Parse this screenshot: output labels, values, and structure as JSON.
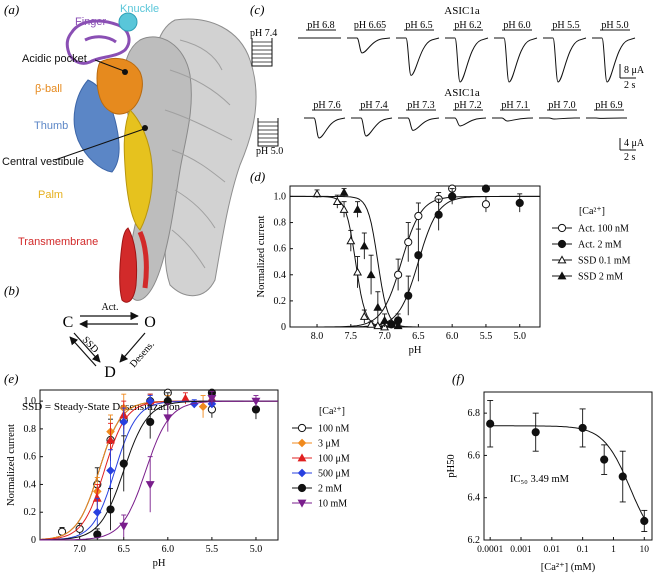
{
  "panels": {
    "a": {
      "label": "(a)",
      "domains": {
        "finger": "Finger",
        "knuckle": "Knuckle",
        "acidic_pocket": "Acidic pocket",
        "beta_ball": "β-ball",
        "thumb": "Thumb",
        "central_vestibule": "Central vestibule",
        "palm": "Palm",
        "transmembrane": "Transmembrane"
      },
      "colors": {
        "finger": "#8a4fb4",
        "knuckle": "#59c6d9",
        "beta_ball": "#e68a1e",
        "thumb": "#5b86c6",
        "palm": "#e6c21e",
        "transmembrane": "#d22a2a",
        "protein": "#c8c8c8"
      }
    },
    "b": {
      "label": "(b)",
      "states": {
        "c": "C",
        "o": "O",
        "d": "D"
      },
      "transitions": {
        "act": "Act.",
        "ssd": "SSD",
        "desens": "Desens."
      },
      "footnote": "SSD = Steady-State Desensitization"
    },
    "c": {
      "label": "(c)",
      "top": {
        "title": "ASIC1a",
        "conditioning": "pH 7.4",
        "tests": [
          "pH 6.8",
          "pH 6.65",
          "pH 6.5",
          "pH 6.2",
          "pH 6.0",
          "pH 5.5",
          "pH 5.0"
        ],
        "relative_amplitude": [
          0.0,
          0.34,
          0.85,
          1.0,
          1.0,
          1.0,
          1.0
        ],
        "scale_y": "8 μA",
        "scale_x": "2 s"
      },
      "bottom": {
        "title": "ASIC1a",
        "conditioning": "pH 5.0",
        "tests": [
          "pH 7.6",
          "pH 7.4",
          "pH 7.3",
          "pH 7.2",
          "pH 7.1",
          "pH 7.0",
          "pH 6.9"
        ],
        "relative_amplitude": [
          1.0,
          0.9,
          0.62,
          0.4,
          0.15,
          0.05,
          0.02
        ],
        "scale_y": "4 μA",
        "scale_x": "2 s"
      }
    },
    "d": {
      "label": "(d)"
    },
    "e": {
      "label": "(e)"
    },
    "f": {
      "label": "(f)"
    }
  },
  "chart_data": [
    {
      "id": "d",
      "type": "scatter",
      "xlabel": "pH",
      "ylabel": "Normalized current",
      "xlim": [
        8.4,
        4.7
      ],
      "ylim": [
        0,
        1.08
      ],
      "xticks": [
        "8.0",
        "7.5",
        "7.0",
        "6.5",
        "6.0",
        "5.5",
        "5.0"
      ],
      "yticks": [
        "0",
        "0.2",
        "0.4",
        "0.6",
        "0.8",
        "1.0"
      ],
      "legend_title": "[Ca²⁺]",
      "legend_position": "right",
      "series": [
        {
          "name": "Act. 100 nM",
          "marker": "circle-open",
          "color": "#111111",
          "pH50": 6.75,
          "hill": 3.0,
          "rising": true,
          "x": [
            7.0,
            6.8,
            6.65,
            6.5,
            6.2,
            6.0,
            5.5
          ],
          "y": [
            0.02,
            0.4,
            0.65,
            0.85,
            0.98,
            1.06,
            0.94
          ],
          "err": [
            0.02,
            0.12,
            0.15,
            0.1,
            0.05,
            0.04,
            0.06
          ]
        },
        {
          "name": "Act. 2 mM",
          "marker": "circle-filled",
          "color": "#111111",
          "pH50": 6.5,
          "hill": 3.0,
          "rising": true,
          "x": [
            6.9,
            6.8,
            6.65,
            6.5,
            6.2,
            6.0,
            5.5,
            5.0
          ],
          "y": [
            0.02,
            0.05,
            0.24,
            0.55,
            0.86,
            1.0,
            1.06,
            0.95
          ],
          "err": [
            0.02,
            0.05,
            0.15,
            0.2,
            0.12,
            0.06,
            0.03,
            0.07
          ]
        },
        {
          "name": "SSD 0.1 mM",
          "marker": "triangle-open",
          "color": "#111111",
          "pH50": 7.43,
          "hill": 6.0,
          "rising": false,
          "x": [
            8.0,
            7.7,
            7.6,
            7.5,
            7.4,
            7.3,
            7.2,
            7.1,
            7.0
          ],
          "y": [
            1.02,
            0.96,
            0.9,
            0.66,
            0.42,
            0.08,
            0.02,
            0.01,
            0.0
          ],
          "err": [
            0.03,
            0.05,
            0.06,
            0.08,
            0.12,
            0.05,
            0.02,
            0.01,
            0.01
          ]
        },
        {
          "name": "SSD 2 mM",
          "marker": "triangle-filled",
          "color": "#111111",
          "pH50": 7.1,
          "hill": 6.0,
          "rising": false,
          "x": [
            7.6,
            7.4,
            7.3,
            7.2,
            7.1,
            7.0,
            6.9,
            6.8
          ],
          "y": [
            1.03,
            0.9,
            0.62,
            0.4,
            0.15,
            0.05,
            0.02,
            0.01
          ],
          "err": [
            0.03,
            0.06,
            0.1,
            0.15,
            0.12,
            0.05,
            0.02,
            0.01
          ]
        }
      ]
    },
    {
      "id": "e",
      "type": "scatter",
      "xlabel": "pH",
      "ylabel": "Normalized current",
      "xlim": [
        7.45,
        4.75
      ],
      "ylim": [
        0,
        1.08
      ],
      "xticks": [
        "7.0",
        "6.5",
        "6.0",
        "5.5",
        "5.0"
      ],
      "yticks": [
        "0",
        "0.2",
        "0.4",
        "0.6",
        "0.8",
        "1.0"
      ],
      "legend_title": "[Ca²⁺]",
      "legend_position": "right",
      "series": [
        {
          "name": "100 nM",
          "marker": "circle-open",
          "color": "#111111",
          "pH50": 6.78,
          "hill": 3.5,
          "x": [
            7.2,
            7.0,
            6.8,
            6.65,
            6.5,
            6.2,
            6.0,
            5.5
          ],
          "y": [
            0.06,
            0.08,
            0.4,
            0.72,
            0.86,
            1.0,
            1.06,
            0.94
          ],
          "err": [
            0.03,
            0.04,
            0.12,
            0.15,
            0.1,
            0.05,
            0.03,
            0.06
          ]
        },
        {
          "name": "3 μM",
          "marker": "diamond-filled",
          "color": "#f08a1e",
          "pH50": 6.78,
          "hill": 3.5,
          "x": [
            6.8,
            6.65,
            6.5,
            6.0,
            5.6
          ],
          "y": [
            0.35,
            0.78,
            0.95,
            1.0,
            0.96
          ],
          "err": [
            0.1,
            0.12,
            0.1,
            0.04,
            0.08
          ]
        },
        {
          "name": "100 μM",
          "marker": "triangle-filled",
          "color": "#e02020",
          "pH50": 6.72,
          "hill": 3.5,
          "x": [
            6.8,
            6.65,
            6.5,
            6.2,
            5.8,
            5.5
          ],
          "y": [
            0.3,
            0.72,
            0.9,
            1.0,
            1.02,
            1.02
          ],
          "err": [
            0.1,
            0.12,
            0.1,
            0.05,
            0.04,
            0.04
          ]
        },
        {
          "name": "500 μM",
          "marker": "diamond-filled",
          "color": "#2840e0",
          "pH50": 6.6,
          "hill": 3.5,
          "x": [
            6.8,
            6.65,
            6.5,
            6.2,
            5.7,
            5.5
          ],
          "y": [
            0.2,
            0.5,
            0.85,
            1.0,
            0.98,
            0.98
          ],
          "err": [
            0.1,
            0.15,
            0.1,
            0.04,
            0.03,
            0.03
          ]
        },
        {
          "name": "2 mM",
          "marker": "circle-filled",
          "color": "#111111",
          "pH50": 6.5,
          "hill": 3.2,
          "x": [
            6.8,
            6.65,
            6.5,
            6.2,
            6.0,
            5.5,
            5.0
          ],
          "y": [
            0.04,
            0.22,
            0.55,
            0.85,
            1.0,
            1.06,
            0.94
          ],
          "err": [
            0.04,
            0.15,
            0.2,
            0.12,
            0.06,
            0.03,
            0.07
          ]
        },
        {
          "name": "10 mM",
          "marker": "triangle-down-filled",
          "color": "#7a1e8c",
          "pH50": 6.25,
          "hill": 3.2,
          "x": [
            6.5,
            6.2,
            6.0,
            5.5,
            5.0
          ],
          "y": [
            0.1,
            0.4,
            0.88,
            1.02,
            1.0
          ],
          "err": [
            0.08,
            0.2,
            0.1,
            0.05,
            0.04
          ]
        }
      ]
    },
    {
      "id": "f",
      "type": "scatter",
      "xlabel": "[Ca²⁺] (mM)",
      "ylabel": "pH50",
      "xscale": "log",
      "xlim": [
        0.0001,
        10
      ],
      "ylim": [
        6.2,
        6.9
      ],
      "xticks": [
        "0.0001",
        "0.001",
        "0.01",
        "0.1",
        "1",
        "10"
      ],
      "yticks": [
        "6.2",
        "6.4",
        "6.6",
        "6.8"
      ],
      "annotation": "IC₅₀ 3.49 mM",
      "fit": {
        "top": 6.74,
        "bottom": 6.15,
        "ic50": 3.49
      },
      "x": [
        0.0001,
        0.003,
        0.1,
        0.5,
        2,
        10
      ],
      "y": [
        6.75,
        6.71,
        6.73,
        6.58,
        6.5,
        6.29
      ],
      "err": [
        0.11,
        0.09,
        0.09,
        0.07,
        0.12,
        0.05
      ]
    }
  ]
}
